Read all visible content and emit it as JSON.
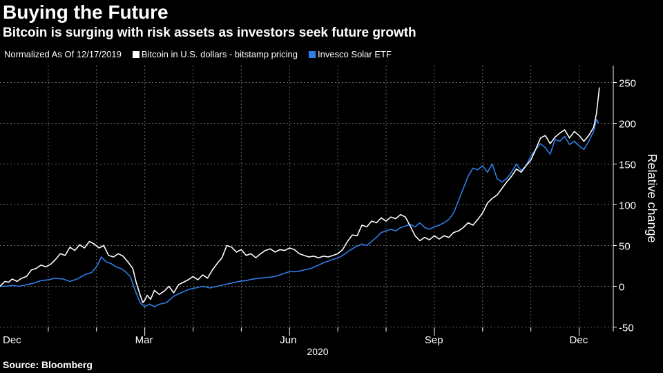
{
  "header": {
    "title": "Buying the Future",
    "subtitle": "Bitcoin is surging with risk assets as investors seek future growth"
  },
  "legend": {
    "normalized_label": "Normalized As Of 12/17/2019",
    "items": [
      {
        "label": "Bitcoin in U.S. dollars - bitstamp pricing",
        "color": "#ffffff"
      },
      {
        "label": "Invesco Solar ETF",
        "color": "#2f7ee8"
      }
    ]
  },
  "footer": {
    "source": "Source: Bloomberg"
  },
  "chart_data": {
    "type": "line",
    "title": "Buying the Future",
    "subtitle": "Bitcoin is surging with risk assets as investors seek future growth",
    "xlabel": "2020",
    "ylabel": "Relative change",
    "x_unit": "month index (0 = Dec 1, 2019)",
    "x_range": [
      0,
      12.45
    ],
    "ylim": [
      -50,
      250
    ],
    "y_ticks": [
      250,
      200,
      150,
      100,
      50,
      0,
      -50
    ],
    "x_ticks": [
      {
        "label": "Dec",
        "x": 0
      },
      {
        "label": "Mar",
        "x": 3
      },
      {
        "label": "Jun",
        "x": 6
      },
      {
        "label": "Sep",
        "x": 9
      },
      {
        "label": "Dec",
        "x": 12
      }
    ],
    "grid": "dashed",
    "series": [
      {
        "name": "Bitcoin in U.S. dollars - bitstamp pricing",
        "color": "#ffffff",
        "points": [
          [
            0.0,
            0
          ],
          [
            0.1,
            6
          ],
          [
            0.18,
            5
          ],
          [
            0.25,
            9
          ],
          [
            0.35,
            6
          ],
          [
            0.45,
            10
          ],
          [
            0.55,
            12
          ],
          [
            0.65,
            20
          ],
          [
            0.75,
            22
          ],
          [
            0.85,
            26
          ],
          [
            0.95,
            24
          ],
          [
            1.05,
            27
          ],
          [
            1.15,
            33
          ],
          [
            1.25,
            40
          ],
          [
            1.35,
            38
          ],
          [
            1.45,
            48
          ],
          [
            1.55,
            44
          ],
          [
            1.65,
            51
          ],
          [
            1.75,
            47
          ],
          [
            1.85,
            55
          ],
          [
            1.95,
            52
          ],
          [
            2.05,
            47
          ],
          [
            2.15,
            50
          ],
          [
            2.25,
            38
          ],
          [
            2.35,
            36
          ],
          [
            2.45,
            40
          ],
          [
            2.55,
            37
          ],
          [
            2.65,
            30
          ],
          [
            2.75,
            22
          ],
          [
            2.82,
            5
          ],
          [
            2.9,
            -10
          ],
          [
            2.96,
            -20
          ],
          [
            3.0,
            -17
          ],
          [
            3.05,
            -11
          ],
          [
            3.12,
            -16
          ],
          [
            3.2,
            -5
          ],
          [
            3.3,
            -10
          ],
          [
            3.4,
            -6
          ],
          [
            3.5,
            0
          ],
          [
            3.6,
            -8
          ],
          [
            3.7,
            2
          ],
          [
            3.8,
            5
          ],
          [
            3.9,
            8
          ],
          [
            4.0,
            12
          ],
          [
            4.1,
            8
          ],
          [
            4.2,
            14
          ],
          [
            4.3,
            10
          ],
          [
            4.4,
            20
          ],
          [
            4.5,
            28
          ],
          [
            4.6,
            35
          ],
          [
            4.7,
            50
          ],
          [
            4.8,
            48
          ],
          [
            4.9,
            42
          ],
          [
            5.0,
            45
          ],
          [
            5.1,
            38
          ],
          [
            5.2,
            40
          ],
          [
            5.3,
            35
          ],
          [
            5.4,
            40
          ],
          [
            5.5,
            44
          ],
          [
            5.6,
            46
          ],
          [
            5.7,
            42
          ],
          [
            5.8,
            45
          ],
          [
            5.9,
            44
          ],
          [
            6.0,
            47
          ],
          [
            6.1,
            45
          ],
          [
            6.2,
            40
          ],
          [
            6.3,
            38
          ],
          [
            6.4,
            36
          ],
          [
            6.5,
            37
          ],
          [
            6.6,
            35
          ],
          [
            6.7,
            37
          ],
          [
            6.8,
            36
          ],
          [
            6.9,
            38
          ],
          [
            7.0,
            40
          ],
          [
            7.1,
            45
          ],
          [
            7.2,
            55
          ],
          [
            7.3,
            63
          ],
          [
            7.4,
            62
          ],
          [
            7.5,
            75
          ],
          [
            7.6,
            73
          ],
          [
            7.7,
            80
          ],
          [
            7.8,
            78
          ],
          [
            7.9,
            84
          ],
          [
            8.0,
            80
          ],
          [
            8.1,
            85
          ],
          [
            8.2,
            83
          ],
          [
            8.3,
            88
          ],
          [
            8.4,
            85
          ],
          [
            8.5,
            74
          ],
          [
            8.6,
            62
          ],
          [
            8.7,
            56
          ],
          [
            8.8,
            60
          ],
          [
            8.9,
            57
          ],
          [
            9.0,
            62
          ],
          [
            9.1,
            58
          ],
          [
            9.2,
            62
          ],
          [
            9.3,
            60
          ],
          [
            9.4,
            66
          ],
          [
            9.5,
            68
          ],
          [
            9.6,
            72
          ],
          [
            9.7,
            78
          ],
          [
            9.8,
            75
          ],
          [
            9.9,
            82
          ],
          [
            10.0,
            90
          ],
          [
            10.1,
            102
          ],
          [
            10.2,
            108
          ],
          [
            10.3,
            112
          ],
          [
            10.4,
            120
          ],
          [
            10.5,
            128
          ],
          [
            10.6,
            135
          ],
          [
            10.7,
            144
          ],
          [
            10.8,
            140
          ],
          [
            10.9,
            148
          ],
          [
            11.0,
            155
          ],
          [
            11.1,
            168
          ],
          [
            11.2,
            182
          ],
          [
            11.3,
            185
          ],
          [
            11.4,
            175
          ],
          [
            11.5,
            183
          ],
          [
            11.6,
            188
          ],
          [
            11.7,
            192
          ],
          [
            11.8,
            182
          ],
          [
            11.9,
            190
          ],
          [
            12.0,
            185
          ],
          [
            12.1,
            178
          ],
          [
            12.2,
            185
          ],
          [
            12.3,
            195
          ],
          [
            12.36,
            212
          ],
          [
            12.42,
            244
          ]
        ]
      },
      {
        "name": "Invesco Solar ETF",
        "color": "#2f7ee8",
        "points": [
          [
            0.0,
            0
          ],
          [
            0.1,
            0
          ],
          [
            0.25,
            1
          ],
          [
            0.4,
            0
          ],
          [
            0.55,
            2
          ],
          [
            0.7,
            4
          ],
          [
            0.85,
            7
          ],
          [
            1.0,
            8
          ],
          [
            1.15,
            10
          ],
          [
            1.3,
            9
          ],
          [
            1.45,
            6
          ],
          [
            1.6,
            9
          ],
          [
            1.75,
            14
          ],
          [
            1.9,
            17
          ],
          [
            2.0,
            24
          ],
          [
            2.1,
            36
          ],
          [
            2.2,
            30
          ],
          [
            2.3,
            28
          ],
          [
            2.4,
            24
          ],
          [
            2.5,
            22
          ],
          [
            2.6,
            18
          ],
          [
            2.7,
            12
          ],
          [
            2.8,
            -5
          ],
          [
            2.9,
            -20
          ],
          [
            3.0,
            -25
          ],
          [
            3.1,
            -22
          ],
          [
            3.2,
            -25
          ],
          [
            3.3,
            -22
          ],
          [
            3.45,
            -20
          ],
          [
            3.6,
            -12
          ],
          [
            3.75,
            -8
          ],
          [
            3.9,
            -4
          ],
          [
            4.05,
            -2
          ],
          [
            4.2,
            0
          ],
          [
            4.35,
            -2
          ],
          [
            4.5,
            0
          ],
          [
            4.65,
            2
          ],
          [
            4.8,
            4
          ],
          [
            4.95,
            6
          ],
          [
            5.1,
            7
          ],
          [
            5.25,
            9
          ],
          [
            5.4,
            10
          ],
          [
            5.55,
            11
          ],
          [
            5.7,
            12
          ],
          [
            5.85,
            15
          ],
          [
            6.0,
            18
          ],
          [
            6.15,
            18
          ],
          [
            6.3,
            20
          ],
          [
            6.45,
            22
          ],
          [
            6.6,
            26
          ],
          [
            6.75,
            30
          ],
          [
            6.9,
            33
          ],
          [
            7.05,
            36
          ],
          [
            7.2,
            42
          ],
          [
            7.35,
            48
          ],
          [
            7.5,
            52
          ],
          [
            7.6,
            50
          ],
          [
            7.7,
            55
          ],
          [
            7.8,
            60
          ],
          [
            7.9,
            66
          ],
          [
            8.0,
            68
          ],
          [
            8.1,
            70
          ],
          [
            8.2,
            68
          ],
          [
            8.3,
            72
          ],
          [
            8.4,
            74
          ],
          [
            8.5,
            76
          ],
          [
            8.6,
            73
          ],
          [
            8.7,
            78
          ],
          [
            8.8,
            72
          ],
          [
            8.9,
            70
          ],
          [
            9.0,
            73
          ],
          [
            9.1,
            75
          ],
          [
            9.2,
            78
          ],
          [
            9.3,
            82
          ],
          [
            9.4,
            90
          ],
          [
            9.5,
            105
          ],
          [
            9.6,
            120
          ],
          [
            9.7,
            135
          ],
          [
            9.8,
            145
          ],
          [
            9.9,
            143
          ],
          [
            10.0,
            148
          ],
          [
            10.1,
            140
          ],
          [
            10.2,
            150
          ],
          [
            10.3,
            132
          ],
          [
            10.4,
            128
          ],
          [
            10.5,
            132
          ],
          [
            10.6,
            140
          ],
          [
            10.7,
            150
          ],
          [
            10.8,
            142
          ],
          [
            10.9,
            148
          ],
          [
            11.0,
            160
          ],
          [
            11.1,
            168
          ],
          [
            11.2,
            175
          ],
          [
            11.3,
            170
          ],
          [
            11.4,
            162
          ],
          [
            11.5,
            180
          ],
          [
            11.6,
            178
          ],
          [
            11.7,
            184
          ],
          [
            11.8,
            174
          ],
          [
            11.9,
            178
          ],
          [
            12.0,
            172
          ],
          [
            12.1,
            168
          ],
          [
            12.2,
            178
          ],
          [
            12.3,
            190
          ],
          [
            12.36,
            205
          ],
          [
            12.4,
            200
          ]
        ]
      }
    ]
  }
}
